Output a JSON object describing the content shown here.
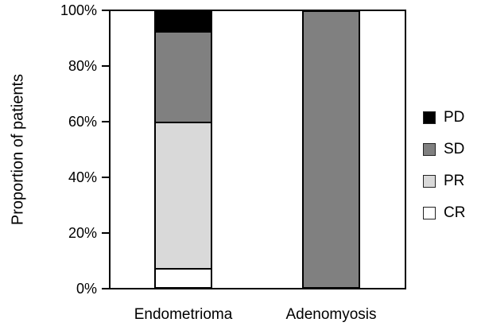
{
  "chart_data": {
    "type": "bar",
    "subtype": "stacked",
    "title": "",
    "xlabel": "",
    "ylabel": "Proportion of patients",
    "categories": [
      "Endometrioma",
      "Adenomyosis"
    ],
    "series": [
      {
        "name": "PD",
        "color": "#000000",
        "values": [
          7,
          0
        ]
      },
      {
        "name": "SD",
        "color": "#808080",
        "values": [
          33,
          100
        ]
      },
      {
        "name": "PR",
        "color": "#d9d9d9",
        "values": [
          53,
          0
        ]
      },
      {
        "name": "CR",
        "color": "#ffffff",
        "values": [
          7,
          0
        ]
      }
    ],
    "series_order_note": "listed top-to-bottom of stack; legend shows same order",
    "ylim": [
      0,
      100
    ],
    "ytick_labels": [
      "0%",
      "20%",
      "40%",
      "60%",
      "80%",
      "100%"
    ],
    "ytick_values": [
      0,
      20,
      40,
      60,
      80,
      100
    ],
    "grid": false,
    "legend_position": "right",
    "frame_color": "#000000",
    "background_color": "#ffffff"
  }
}
